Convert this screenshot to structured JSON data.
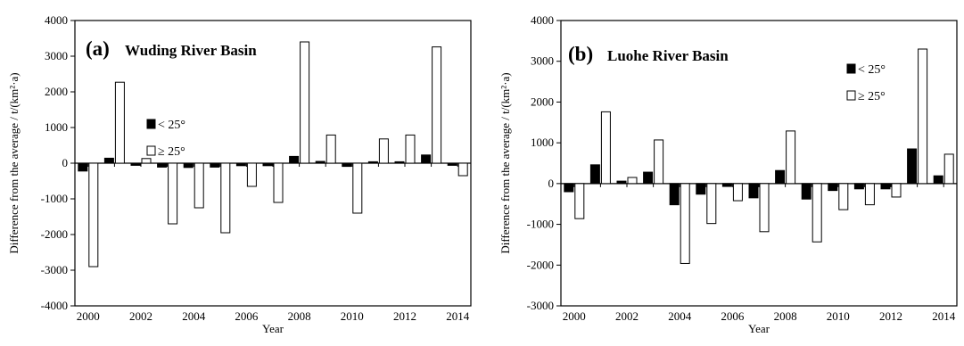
{
  "charts": [
    {
      "panel": "(a)",
      "title": "Wuding River Basin",
      "chart_data": {
        "type": "bar",
        "x": [
          2000,
          2001,
          2002,
          2003,
          2004,
          2005,
          2006,
          2007,
          2008,
          2009,
          2010,
          2011,
          2012,
          2013,
          2014
        ],
        "series": [
          {
            "name": "< 25°",
            "fill": "#000000",
            "values": [
              -220,
              140,
              -60,
              -110,
              -120,
              -110,
              -70,
              -70,
              190,
              50,
              -90,
              40,
              40,
              230,
              -60
            ]
          },
          {
            "name": "≥ 25°",
            "fill": "#ffffff",
            "values": [
              -2900,
              2270,
              130,
              -1700,
              -1250,
              -1950,
              -650,
              -1100,
              3400,
              790,
              -1400,
              680,
              790,
              3260,
              -350
            ]
          }
        ],
        "xlabel": "Year",
        "ylabel": "Difference from the average / t/(km²·a)",
        "ylim": [
          -4000,
          4000
        ],
        "yticks": [
          -4000,
          -3000,
          -2000,
          -1000,
          0,
          1000,
          2000,
          3000,
          4000
        ],
        "xticks": [
          2000,
          2002,
          2004,
          2006,
          2008,
          2010,
          2012,
          2014
        ],
        "legend_position": "upper-left",
        "grid": false
      }
    },
    {
      "panel": "(b)",
      "title": "Luohe River Basin",
      "chart_data": {
        "type": "bar",
        "x": [
          2000,
          2001,
          2002,
          2003,
          2004,
          2005,
          2006,
          2007,
          2008,
          2009,
          2010,
          2011,
          2012,
          2013,
          2014
        ],
        "series": [
          {
            "name": "< 25°",
            "fill": "#000000",
            "values": [
              -200,
              460,
              60,
              280,
              -520,
              -260,
              -70,
              -350,
              320,
              -380,
              -170,
              -130,
              -130,
              850,
              190
            ]
          },
          {
            "name": "≥ 25°",
            "fill": "#ffffff",
            "values": [
              -860,
              1760,
              150,
              1070,
              -1960,
              -980,
              -420,
              -1180,
              1290,
              -1430,
              -640,
              -520,
              -330,
              3300,
              720
            ]
          }
        ],
        "xlabel": "Year",
        "ylabel": "Difference from the average / t/(km²·a)",
        "ylim": [
          -3000,
          4000
        ],
        "yticks": [
          -3000,
          -2000,
          -1000,
          0,
          1000,
          2000,
          3000,
          4000
        ],
        "xticks": [
          2000,
          2002,
          2004,
          2006,
          2008,
          2010,
          2012,
          2014
        ],
        "legend_position": "upper-right",
        "grid": false
      }
    }
  ]
}
